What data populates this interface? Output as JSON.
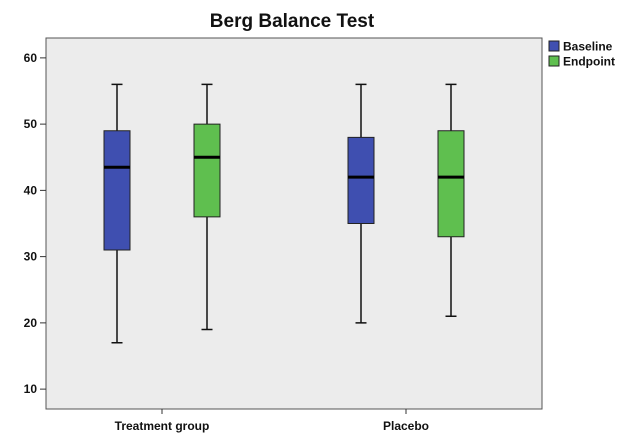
{
  "chart_data": {
    "type": "boxplot",
    "title": "Berg Balance Test",
    "xlabel": "",
    "ylabel": "",
    "ylim": [
      7,
      63
    ],
    "yticks": [
      10,
      20,
      30,
      40,
      50,
      60
    ],
    "grid": false,
    "legend_position": "top-right",
    "categories": [
      "Treatment group",
      "Placebo"
    ],
    "series": [
      {
        "name": "Baseline",
        "color": "#3f4fb0",
        "boxes": [
          {
            "min": 17,
            "q1": 31,
            "median": 43.5,
            "q3": 49,
            "max": 56
          },
          {
            "min": 20,
            "q1": 35,
            "median": 42,
            "q3": 48,
            "max": 56
          }
        ]
      },
      {
        "name": "Endpoint",
        "color": "#5fbf4f",
        "boxes": [
          {
            "min": 19,
            "q1": 36,
            "median": 45,
            "q3": 50,
            "max": 56
          },
          {
            "min": 21,
            "q1": 33,
            "median": 42,
            "q3": 49,
            "max": 56
          }
        ]
      }
    ]
  }
}
